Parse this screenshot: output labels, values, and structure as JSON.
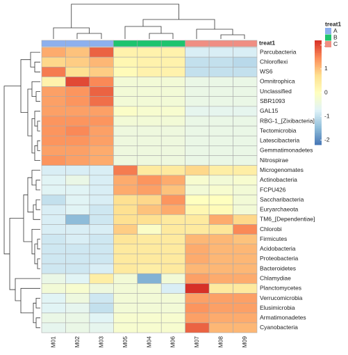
{
  "chart_data": {
    "type": "heatmap",
    "columns": [
      "M01",
      "M02",
      "M03",
      "M05",
      "M04",
      "M06",
      "M07",
      "M08",
      "M09"
    ],
    "rows": [
      "Parcubacteria",
      "Chloroflexi",
      "WS6",
      "Omnitrophica",
      "Unclassified",
      "SBR1093",
      "GAL15",
      "RBG-1_[Zixibacteria]",
      "Tectomicrobia",
      "Latescibacteria",
      "Gemmatimonadetes",
      "Nitrospirae",
      "Microgenomates",
      "Actinobacteria",
      "FCPU426",
      "Saccharibacteria",
      "Euryarchaeota",
      "TM6_[Dependentiae]",
      "Chlorobi",
      "Firmicutes",
      "Acidobacteria",
      "Proteobacteria",
      "Bacteroidetes",
      "Chlamydiae",
      "Planctomycetes",
      "Verrucomicrobia",
      "Elusimicrobia",
      "Armatimonadetes",
      "Cyanobacteria"
    ],
    "values": [
      [
        1.2,
        1.0,
        1.8,
        0.3,
        0.3,
        0.3,
        -0.8,
        -0.8,
        -0.8
      ],
      [
        0.8,
        0.9,
        1.1,
        0.2,
        0.3,
        0.3,
        -1.0,
        -1.0,
        -1.1
      ],
      [
        1.6,
        0.7,
        0.9,
        0.1,
        0.3,
        0.3,
        -1.0,
        -1.0,
        -1.0
      ],
      [
        0.3,
        2.0,
        1.5,
        -0.3,
        -0.3,
        -0.3,
        -0.5,
        -0.5,
        -0.5
      ],
      [
        1.3,
        1.4,
        1.8,
        -0.3,
        -0.3,
        -0.3,
        -0.5,
        -0.5,
        -0.5
      ],
      [
        1.3,
        1.4,
        1.7,
        -0.3,
        -0.3,
        -0.3,
        -0.5,
        -0.5,
        -0.5
      ],
      [
        1.3,
        1.3,
        1.3,
        -0.1,
        -0.2,
        -0.2,
        -0.6,
        -0.6,
        -0.6
      ],
      [
        1.4,
        1.4,
        1.4,
        -0.3,
        -0.3,
        -0.3,
        -0.5,
        -0.5,
        -0.5
      ],
      [
        1.4,
        1.5,
        1.3,
        -0.4,
        -0.4,
        -0.4,
        -0.5,
        -0.5,
        -0.5
      ],
      [
        1.4,
        1.4,
        1.3,
        -0.4,
        -0.4,
        -0.4,
        -0.5,
        -0.5,
        -0.5
      ],
      [
        1.3,
        1.3,
        1.2,
        -0.4,
        -0.4,
        -0.4,
        -0.5,
        -0.5,
        -0.5
      ],
      [
        1.4,
        1.3,
        1.2,
        -0.4,
        -0.4,
        -0.4,
        -0.5,
        -0.5,
        -0.5
      ],
      [
        -0.8,
        -0.8,
        -0.8,
        1.6,
        0.5,
        0.5,
        0.8,
        0.4,
        0.4
      ],
      [
        -0.7,
        -0.5,
        -0.8,
        1.2,
        1.4,
        1.2,
        -0.2,
        -0.3,
        -0.2
      ],
      [
        -0.7,
        -0.7,
        -0.8,
        1.2,
        1.3,
        1.0,
        -0.3,
        -0.2,
        -0.3
      ],
      [
        -1.0,
        -0.7,
        -0.8,
        0.7,
        0.8,
        1.4,
        0.0,
        0.0,
        -0.3
      ],
      [
        -0.8,
        -0.7,
        -0.9,
        0.7,
        1.0,
        1.2,
        0.2,
        0.1,
        -0.3
      ],
      [
        -0.8,
        -1.5,
        -0.9,
        0.7,
        0.7,
        0.5,
        0.5,
        1.2,
        0.8
      ],
      [
        -0.8,
        -0.8,
        -0.8,
        0.9,
        -0.1,
        0.5,
        0.5,
        0.6,
        1.5
      ],
      [
        -0.9,
        -0.8,
        -0.9,
        0.6,
        0.5,
        0.5,
        1.1,
        1.1,
        1.0
      ],
      [
        -0.9,
        -0.9,
        -0.9,
        0.5,
        0.5,
        0.5,
        1.2,
        1.1,
        1.1
      ],
      [
        -0.9,
        -0.9,
        -0.9,
        0.5,
        0.5,
        0.5,
        1.2,
        1.1,
        1.1
      ],
      [
        -0.9,
        -0.9,
        -0.8,
        0.5,
        0.4,
        0.5,
        1.1,
        1.1,
        1.1
      ],
      [
        -0.5,
        -0.7,
        0.4,
        -0.3,
        -1.6,
        -0.3,
        1.3,
        1.2,
        1.2
      ],
      [
        -0.3,
        -0.2,
        -0.4,
        -0.3,
        -0.3,
        -0.8,
        2.2,
        0.5,
        0.5
      ],
      [
        -0.7,
        -0.4,
        -0.9,
        -0.3,
        -0.3,
        -0.3,
        1.3,
        1.3,
        1.3
      ],
      [
        -0.7,
        -0.6,
        -1.0,
        -0.3,
        -0.3,
        -0.3,
        1.4,
        1.3,
        1.3
      ],
      [
        -0.5,
        -0.5,
        -0.7,
        -0.2,
        -0.2,
        -0.2,
        1.3,
        1.2,
        1.2
      ],
      [
        -0.6,
        -0.5,
        -0.6,
        -0.2,
        -0.2,
        -0.2,
        1.8,
        1.1,
        1.1
      ]
    ],
    "zlim": [
      -2.2,
      2.2
    ],
    "zticks": [
      -2,
      -1,
      0,
      1,
      2
    ],
    "colorscale": [
      "#4575B4",
      "#91BFDB",
      "#E0F3F8",
      "#FFFFBF",
      "#FEE090",
      "#FC8D59",
      "#D73027"
    ],
    "annotation": {
      "title": "treat1",
      "levels": [
        "A",
        "B",
        "C"
      ],
      "colors": [
        "#8DB0EE",
        "#1DC46E",
        "#F08E83"
      ],
      "groups": [
        "A",
        "A",
        "A",
        "B",
        "B",
        "B",
        "C",
        "C",
        "C"
      ]
    }
  }
}
